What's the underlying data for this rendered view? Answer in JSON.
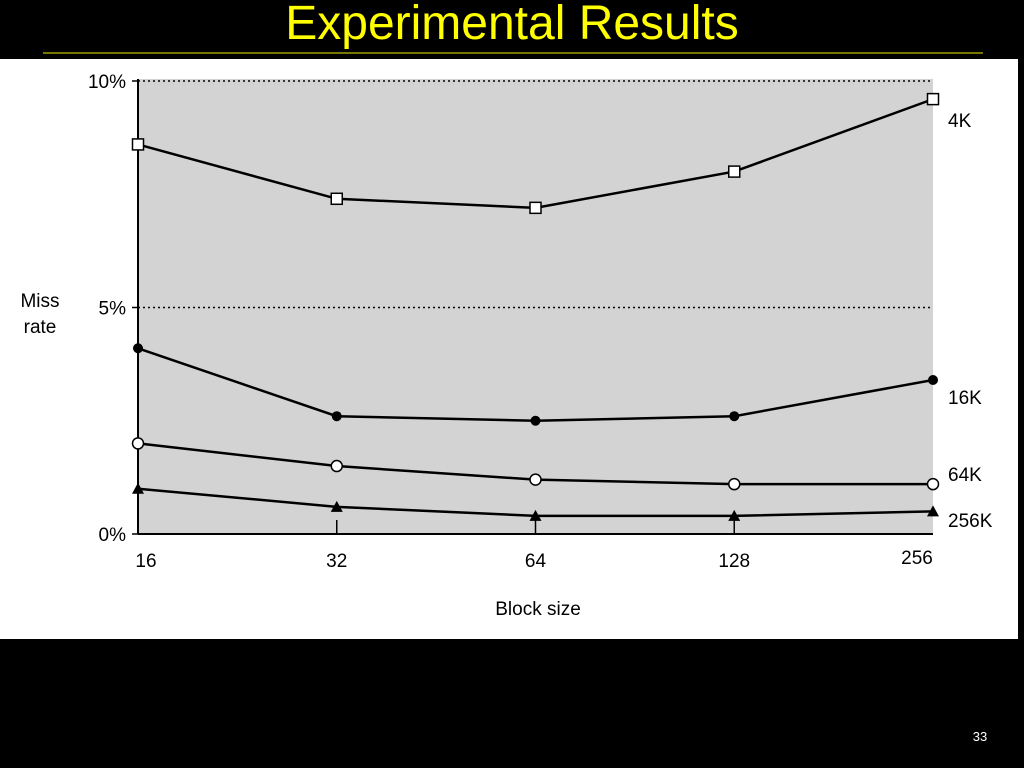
{
  "slide": {
    "title": "Experimental Results",
    "page_number": "33",
    "title_color": "#ffff00",
    "background": "#000000"
  },
  "chart_data": {
    "type": "line",
    "title": "",
    "xlabel": "Block size",
    "ylabel_lines": [
      "Miss",
      "rate"
    ],
    "x_scale": "log2",
    "x": [
      16,
      32,
      64,
      128,
      256
    ],
    "x_tick_labels": [
      "16",
      "32",
      "64",
      "128",
      "256"
    ],
    "y_ticks": [
      0,
      5,
      10
    ],
    "y_tick_labels": [
      "0%",
      "5%",
      "10%"
    ],
    "ylim": [
      0,
      10.3
    ],
    "grid": "dotted at 5% and 10%",
    "plot_background": "#d3d3d3",
    "series": [
      {
        "name": "4K",
        "marker": "open-square",
        "values": [
          8.6,
          7.4,
          7.2,
          8.0,
          9.6
        ]
      },
      {
        "name": "16K",
        "marker": "filled-circle",
        "values": [
          4.1,
          2.6,
          2.5,
          2.6,
          3.4
        ]
      },
      {
        "name": "64K",
        "marker": "open-circle",
        "values": [
          2.0,
          1.5,
          1.2,
          1.1,
          1.1
        ]
      },
      {
        "name": "256K",
        "marker": "filled-triangle",
        "values": [
          1.0,
          0.6,
          0.4,
          0.4,
          0.5
        ]
      }
    ]
  }
}
